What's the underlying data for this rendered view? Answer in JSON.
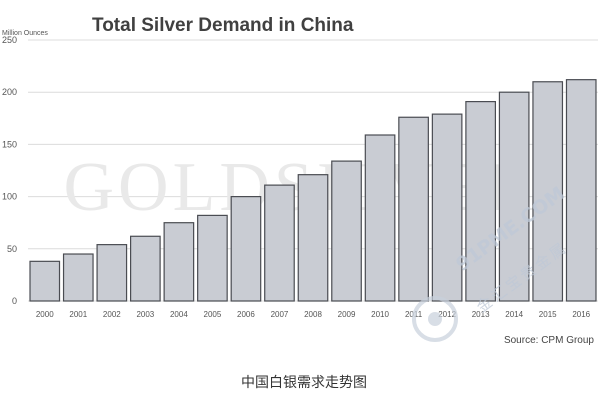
{
  "chart_data": {
    "type": "bar",
    "title": "Total Silver Demand in China",
    "ylabel": "Million Ounces",
    "source": "Source: CPM Group",
    "watermark": "GOLDSILVER",
    "categories": [
      "2000",
      "2001",
      "2002",
      "2003",
      "2004",
      "2005",
      "2006",
      "2007",
      "2008",
      "2009",
      "2010",
      "2011",
      "2012",
      "2013",
      "2014",
      "2015",
      "2016"
    ],
    "values": [
      38,
      45,
      54,
      62,
      75,
      82,
      100,
      111,
      121,
      134,
      159,
      176,
      179,
      191,
      200,
      210,
      212
    ],
    "ylim": [
      0,
      250
    ],
    "yticks": [
      0,
      50,
      100,
      150,
      200,
      250
    ],
    "grid": true,
    "legend": "none",
    "colors": {
      "bar_fill": "#c9ccd3",
      "bar_stroke": "#4a4c52",
      "grid": "#dcdcdc",
      "title": "#404040",
      "axis_text": "#555555"
    }
  },
  "caption": "中国白银需求走势图",
  "site_watermark": {
    "url": "91PME.COM",
    "chinese": "金汇宝贵金属"
  }
}
